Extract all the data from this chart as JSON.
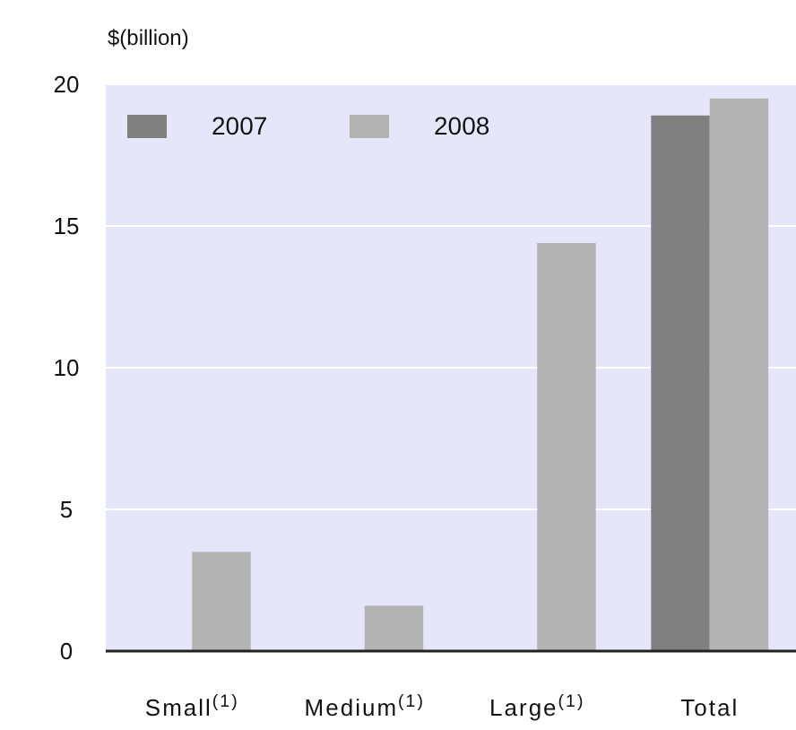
{
  "chart_data": {
    "type": "bar",
    "ylabel": "$(billion)",
    "categories": [
      "Small$^{(1)}$",
      "Medium$^{(1)}$",
      "Large$^{(1)}$",
      "Total"
    ],
    "series": [
      {
        "name": "2007",
        "color": "#808080",
        "values": [
          null,
          null,
          null,
          18.9
        ]
      },
      {
        "name": "2008",
        "color": "#b3b3b3",
        "values": [
          3.5,
          1.6,
          14.4,
          19.5
        ]
      }
    ],
    "ylim": [
      0,
      20
    ],
    "yticks": [
      0,
      5,
      10,
      15,
      20
    ],
    "grid": "y",
    "legend": "top left"
  }
}
